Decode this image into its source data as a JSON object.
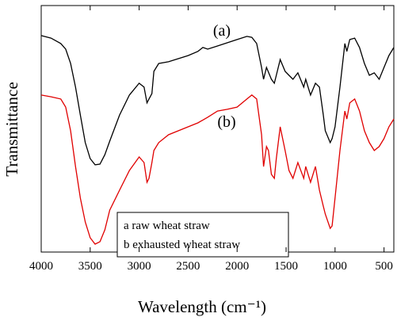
{
  "chart_data": {
    "type": "line",
    "xlabel": "Wavelength (cm⁻¹)",
    "ylabel": "Transmittance",
    "xlim": [
      4000,
      400
    ],
    "ylim": [
      0,
      100
    ],
    "xticks": [
      4000,
      3500,
      3000,
      2500,
      2000,
      1500,
      1000,
      500
    ],
    "annotations": [
      "(a)",
      "(b)"
    ],
    "series": [
      {
        "name": "a raw wheat straw",
        "color": "#000000",
        "x": [
          4000,
          3900,
          3800,
          3750,
          3700,
          3650,
          3600,
          3550,
          3500,
          3450,
          3400,
          3350,
          3300,
          3200,
          3100,
          3000,
          2950,
          2920,
          2900,
          2870,
          2850,
          2800,
          2700,
          2500,
          2400,
          2350,
          2300,
          2200,
          2000,
          1900,
          1850,
          1800,
          1750,
          1730,
          1700,
          1650,
          1620,
          1600,
          1560,
          1510,
          1470,
          1430,
          1380,
          1320,
          1300,
          1250,
          1200,
          1160,
          1120,
          1100,
          1050,
          1030,
          1000,
          950,
          900,
          880,
          850,
          800,
          750,
          700,
          650,
          600,
          550,
          500,
          450,
          400
        ],
        "values": [
          87.8,
          86.8,
          84.6,
          82.3,
          76.5,
          66.9,
          55.6,
          44.4,
          37.9,
          35.4,
          35.7,
          39.5,
          45.0,
          55.6,
          63.7,
          68.5,
          66.9,
          60.5,
          62.1,
          64.3,
          73.3,
          76.5,
          77.2,
          79.7,
          81.4,
          83.0,
          82.3,
          83.6,
          86.2,
          87.5,
          87.1,
          84.6,
          74.9,
          70.1,
          74.9,
          70.1,
          68.5,
          71.7,
          78.1,
          73.3,
          71.7,
          70.1,
          72.7,
          66.9,
          70.1,
          63.7,
          68.5,
          66.9,
          55.6,
          49.2,
          44.4,
          46.0,
          50.8,
          66.9,
          84.6,
          81.4,
          86.2,
          86.8,
          83.0,
          76.5,
          71.7,
          72.7,
          70.1,
          74.9,
          79.7,
          83.0
        ]
      },
      {
        "name": "b exhausted wheat straw",
        "color": "#e00000",
        "x": [
          4000,
          3900,
          3800,
          3750,
          3700,
          3650,
          3600,
          3550,
          3500,
          3450,
          3400,
          3350,
          3300,
          3200,
          3100,
          3000,
          2950,
          2920,
          2900,
          2870,
          2850,
          2800,
          2700,
          2500,
          2400,
          2300,
          2200,
          2100,
          2000,
          1900,
          1850,
          1800,
          1750,
          1730,
          1700,
          1680,
          1650,
          1620,
          1600,
          1560,
          1510,
          1470,
          1430,
          1380,
          1320,
          1300,
          1250,
          1200,
          1160,
          1120,
          1100,
          1050,
          1030,
          1000,
          950,
          900,
          880,
          850,
          800,
          750,
          700,
          650,
          600,
          550,
          500,
          450,
          400
        ],
        "values": [
          63.7,
          63.0,
          62.1,
          58.8,
          49.2,
          34.7,
          21.9,
          12.2,
          5.8,
          3.2,
          4.2,
          9.0,
          17.0,
          25.1,
          33.1,
          38.6,
          36.3,
          28.3,
          29.9,
          36.3,
          41.2,
          44.4,
          47.6,
          50.8,
          52.4,
          54.7,
          57.2,
          57.9,
          58.8,
          62.1,
          63.7,
          62.1,
          47.6,
          34.7,
          42.8,
          41.2,
          31.5,
          29.9,
          37.9,
          50.8,
          41.2,
          33.1,
          29.9,
          36.3,
          29.9,
          34.7,
          28.3,
          34.7,
          25.1,
          18.6,
          15.4,
          9.6,
          10.6,
          21.9,
          41.2,
          57.2,
          54.0,
          60.5,
          62.1,
          57.2,
          49.2,
          44.4,
          41.2,
          42.8,
          46.0,
          50.8,
          54.0
        ]
      }
    ]
  }
}
